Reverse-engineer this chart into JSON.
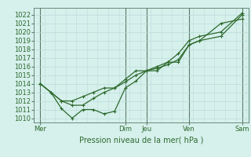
{
  "title": "Pression niveau de la mer( hPa )",
  "background_color": "#d6f0ec",
  "grid_color_h": "#b8dcd8",
  "grid_color_v": "#c0ddd9",
  "line_color": "#2d6a2d",
  "vline_color": "#5a7a6a",
  "x_ticks_labels": [
    "Mer",
    "Dim",
    "Jeu",
    "Ven",
    "Sam"
  ],
  "x_ticks_pos": [
    0.0,
    4.0,
    5.0,
    7.0,
    9.5
  ],
  "ylim": [
    1009.5,
    1022.8
  ],
  "yticks": [
    1010,
    1011,
    1012,
    1013,
    1014,
    1015,
    1016,
    1017,
    1018,
    1019,
    1020,
    1021,
    1022
  ],
  "series": {
    "line1_x": [
      0.0,
      0.5,
      1.0,
      1.5,
      2.0,
      2.5,
      3.0,
      3.5,
      4.0,
      4.5,
      5.0,
      5.5,
      6.0,
      6.5,
      7.0,
      7.5,
      8.5,
      9.5
    ],
    "line1_y": [
      1014.0,
      1013.0,
      1011.1,
      1010.0,
      1011.0,
      1011.0,
      1010.5,
      1010.8,
      1013.5,
      1014.3,
      1015.5,
      1015.8,
      1016.2,
      1016.8,
      1018.5,
      1019.0,
      1021.0,
      1021.5
    ],
    "line2_x": [
      0.0,
      0.5,
      1.0,
      1.5,
      2.0,
      2.5,
      3.0,
      3.5,
      4.0,
      4.5,
      5.0,
      5.5,
      6.0,
      6.5,
      7.0,
      7.5,
      8.5,
      9.5
    ],
    "line2_y": [
      1014.0,
      1013.0,
      1012.0,
      1011.5,
      1011.5,
      1012.3,
      1013.0,
      1013.5,
      1014.2,
      1015.0,
      1015.5,
      1015.5,
      1016.5,
      1016.5,
      1018.5,
      1019.0,
      1019.5,
      1022.0
    ],
    "line3_x": [
      0.0,
      0.5,
      1.0,
      1.5,
      2.0,
      2.5,
      3.0,
      3.5,
      4.0,
      4.5,
      5.0,
      5.5,
      6.0,
      6.5,
      7.0,
      7.5,
      8.5,
      9.5
    ],
    "line3_y": [
      1014.0,
      1013.0,
      1012.0,
      1012.0,
      1012.5,
      1013.0,
      1013.5,
      1013.5,
      1014.5,
      1015.5,
      1015.5,
      1016.0,
      1016.5,
      1017.5,
      1019.0,
      1019.5,
      1020.0,
      1022.2
    ]
  },
  "marker": "+",
  "markersize": 3.5,
  "linewidth": 0.9,
  "xlim": [
    -0.3,
    9.8
  ],
  "vlines_x": [
    0.0,
    4.0,
    5.0,
    7.0,
    9.5
  ],
  "fig_bg": "#d6f0ec",
  "ylabel_fontsize": 6.5,
  "xlabel_fontsize": 7.0,
  "tick_fontsize": 6.0
}
